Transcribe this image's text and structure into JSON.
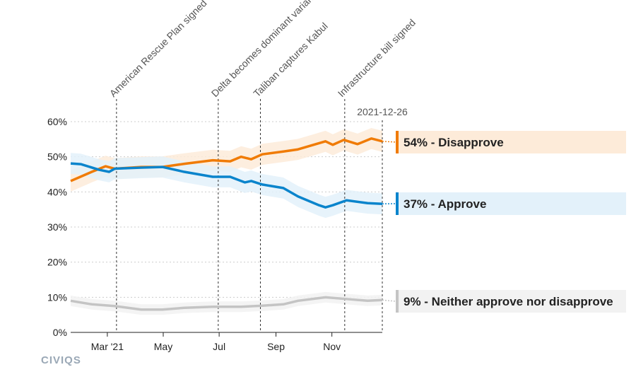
{
  "chart_data": {
    "type": "line",
    "title": "",
    "xlabel": "",
    "ylabel": "",
    "x_range": [
      "2021-01-20",
      "2021-12-26"
    ],
    "ylim": [
      0,
      60
    ],
    "y_ticks": [
      0,
      10,
      20,
      30,
      40,
      50,
      60
    ],
    "y_tick_labels": [
      "0%",
      "10%",
      "20%",
      "30%",
      "40%",
      "50%",
      "60%"
    ],
    "x_ticks": [
      {
        "date": "2021-03-01",
        "label": "Mar '21"
      },
      {
        "date": "2021-05-01",
        "label": "May"
      },
      {
        "date": "2021-07-01",
        "label": "Jul"
      },
      {
        "date": "2021-09-01",
        "label": "Sep"
      },
      {
        "date": "2021-11-01",
        "label": "Nov"
      }
    ],
    "grid": "horizontal dotted",
    "current_date_label": "2021-12-26",
    "events": [
      {
        "date": "2021-03-11",
        "label": "American Rescue Plan signed"
      },
      {
        "date": "2021-06-30",
        "label": "Delta becomes dominant variant"
      },
      {
        "date": "2021-08-15",
        "label": "Taliban captures Kabul"
      },
      {
        "date": "2021-11-15",
        "label": "Infrastructure bill signed"
      }
    ],
    "series": [
      {
        "name": "Disapprove",
        "end_label": "54% - Disapprove",
        "color": "#f07b05",
        "band_color": "#fdebd9",
        "band_halfwidth": 3,
        "points": [
          [
            "2021-01-20",
            43.1
          ],
          [
            "2021-02-12",
            45.7
          ],
          [
            "2021-02-27",
            47.3
          ],
          [
            "2021-03-09",
            46.6
          ],
          [
            "2021-04-07",
            47.1
          ],
          [
            "2021-04-30",
            47.1
          ],
          [
            "2021-05-24",
            48.0
          ],
          [
            "2021-06-24",
            49.0
          ],
          [
            "2021-07-13",
            48.7
          ],
          [
            "2021-07-25",
            50.0
          ],
          [
            "2021-08-05",
            49.3
          ],
          [
            "2021-08-17",
            50.7
          ],
          [
            "2021-09-09",
            51.5
          ],
          [
            "2021-09-25",
            52.1
          ],
          [
            "2021-10-25",
            54.4
          ],
          [
            "2021-11-02",
            53.4
          ],
          [
            "2021-11-14",
            54.8
          ],
          [
            "2021-11-29",
            53.6
          ],
          [
            "2021-12-14",
            55.2
          ],
          [
            "2021-12-26",
            54.4
          ]
        ]
      },
      {
        "name": "Approve",
        "end_label": "37% - Approve",
        "color": "#0a84cc",
        "band_color": "#e3f1fa",
        "band_halfwidth": 3,
        "points": [
          [
            "2021-01-20",
            48.1
          ],
          [
            "2021-01-31",
            47.9
          ],
          [
            "2021-02-20",
            46.3
          ],
          [
            "2021-03-03",
            45.7
          ],
          [
            "2021-03-09",
            46.6
          ],
          [
            "2021-04-07",
            46.9
          ],
          [
            "2021-04-30",
            47.1
          ],
          [
            "2021-05-24",
            45.7
          ],
          [
            "2021-06-24",
            44.3
          ],
          [
            "2021-07-13",
            44.3
          ],
          [
            "2021-07-29",
            42.7
          ],
          [
            "2021-08-05",
            43.1
          ],
          [
            "2021-08-17",
            42.1
          ],
          [
            "2021-09-09",
            41.1
          ],
          [
            "2021-09-25",
            38.7
          ],
          [
            "2021-10-18",
            36.2
          ],
          [
            "2021-10-25",
            35.6
          ],
          [
            "2021-11-02",
            36.2
          ],
          [
            "2021-11-17",
            37.6
          ],
          [
            "2021-12-10",
            36.8
          ],
          [
            "2021-12-26",
            36.6
          ]
        ]
      },
      {
        "name": "Neither approve nor disapprove",
        "end_label": "9% - Neither approve nor disapprove",
        "color": "#c4c4c4",
        "band_color": "#f2f2f2",
        "band_halfwidth": 1.5,
        "points": [
          [
            "2021-01-20",
            9.0
          ],
          [
            "2021-02-12",
            8.0
          ],
          [
            "2021-03-09",
            7.5
          ],
          [
            "2021-04-07",
            6.5
          ],
          [
            "2021-04-30",
            6.5
          ],
          [
            "2021-05-24",
            7.0
          ],
          [
            "2021-06-24",
            7.3
          ],
          [
            "2021-07-25",
            7.3
          ],
          [
            "2021-08-17",
            7.6
          ],
          [
            "2021-09-09",
            8.0
          ],
          [
            "2021-09-25",
            9.0
          ],
          [
            "2021-10-25",
            10.0
          ],
          [
            "2021-11-17",
            9.5
          ],
          [
            "2021-12-10",
            9.0
          ],
          [
            "2021-12-26",
            9.2
          ]
        ]
      }
    ]
  },
  "branding": {
    "logo_text": "CIVIQS"
  }
}
